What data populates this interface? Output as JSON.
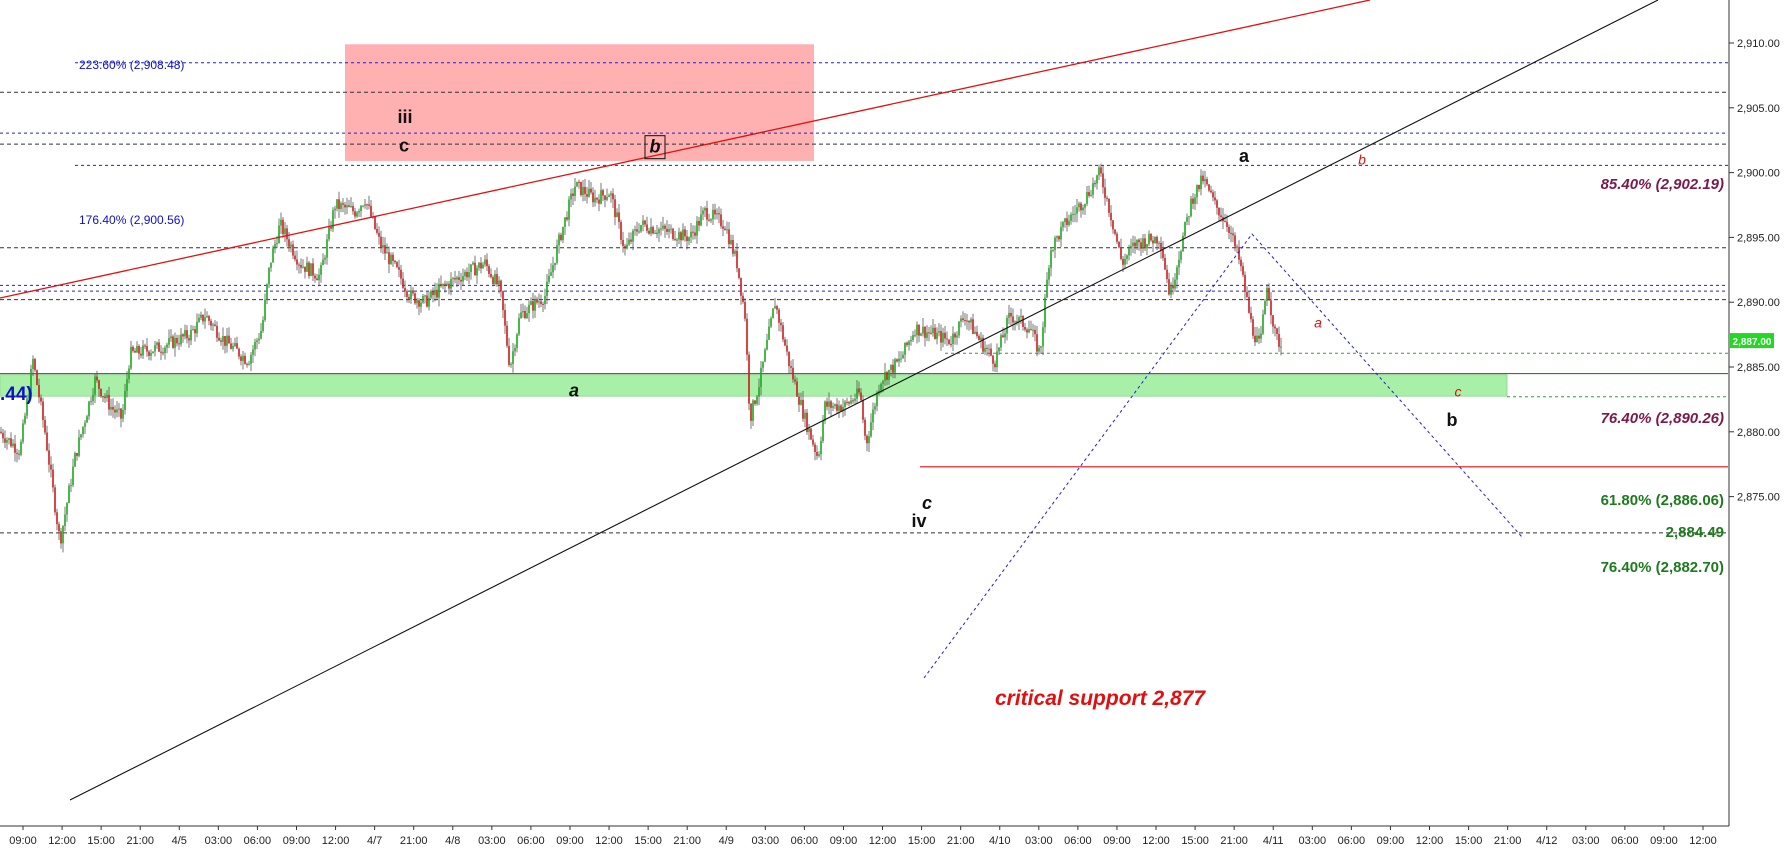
{
  "chart_data": {
    "type": "candlestick",
    "title": "",
    "xlabel": "",
    "ylabel": "",
    "ylim": [
      2870.3,
      2913.2
    ],
    "y_ticks": [
      "2,875.00",
      "2,880.00",
      "2,885.00",
      "2,890.00",
      "2,895.00",
      "2,900.00",
      "2,905.00",
      "2,910.00"
    ],
    "x_ticks": [
      "09:00",
      "12:00",
      "15:00",
      "21:00",
      "4/5",
      "03:00",
      "06:00",
      "09:00",
      "12:00",
      "4/7",
      "21:00",
      "4/8",
      "03:00",
      "06:00",
      "09:00",
      "12:00",
      "15:00",
      "21:00",
      "4/9",
      "03:00",
      "06:00",
      "09:00",
      "12:00",
      "15:00",
      "21:00",
      "4/10",
      "03:00",
      "06:00",
      "09:00",
      "12:00",
      "15:00",
      "21:00",
      "4/11",
      "03:00",
      "06:00",
      "09:00",
      "12:00",
      "15:00",
      "21:00",
      "4/12",
      "03:00",
      "06:00",
      "09:00",
      "12:00"
    ],
    "last_price": "2,887.00",
    "price_path": [
      [
        0,
        2880
      ],
      [
        20,
        2878.5
      ],
      [
        33,
        2885.5
      ],
      [
        45,
        2880
      ],
      [
        52,
        2876
      ],
      [
        60,
        2871.5
      ],
      [
        75,
        2878
      ],
      [
        95,
        2884
      ],
      [
        110,
        2882
      ],
      [
        122,
        2881
      ],
      [
        130,
        2886
      ],
      [
        160,
        2886.5
      ],
      [
        190,
        2887.5
      ],
      [
        205,
        2889
      ],
      [
        225,
        2887
      ],
      [
        248,
        2885.5
      ],
      [
        262,
        2888
      ],
      [
        270,
        2893
      ],
      [
        280,
        2896
      ],
      [
        300,
        2893
      ],
      [
        320,
        2892
      ],
      [
        335,
        2897.5
      ],
      [
        355,
        2897
      ],
      [
        365,
        2898
      ],
      [
        380,
        2894.5
      ],
      [
        400,
        2892
      ],
      [
        410,
        2890.5
      ],
      [
        425,
        2890
      ],
      [
        440,
        2891
      ],
      [
        460,
        2892
      ],
      [
        485,
        2893
      ],
      [
        500,
        2891
      ],
      [
        510,
        2885
      ],
      [
        520,
        2889
      ],
      [
        545,
        2890.5
      ],
      [
        560,
        2895
      ],
      [
        575,
        2899
      ],
      [
        595,
        2898
      ],
      [
        610,
        2898.5
      ],
      [
        625,
        2894
      ],
      [
        640,
        2896
      ],
      [
        665,
        2895.5
      ],
      [
        690,
        2895
      ],
      [
        705,
        2897
      ],
      [
        725,
        2896
      ],
      [
        737,
        2893
      ],
      [
        745,
        2889
      ],
      [
        750,
        2881
      ],
      [
        760,
        2884
      ],
      [
        775,
        2890
      ],
      [
        790,
        2885
      ],
      [
        805,
        2881
      ],
      [
        818,
        2878
      ],
      [
        825,
        2882
      ],
      [
        845,
        2882
      ],
      [
        860,
        2883
      ],
      [
        866,
        2879
      ],
      [
        880,
        2884
      ],
      [
        900,
        2885.5
      ],
      [
        915,
        2888
      ],
      [
        935,
        2887.5
      ],
      [
        950,
        2887
      ],
      [
        965,
        2889
      ],
      [
        980,
        2887
      ],
      [
        995,
        2885.5
      ],
      [
        1010,
        2889
      ],
      [
        1030,
        2888
      ],
      [
        1040,
        2886
      ],
      [
        1050,
        2894
      ],
      [
        1065,
        2896
      ],
      [
        1085,
        2898
      ],
      [
        1100,
        2900
      ],
      [
        1110,
        2897
      ],
      [
        1122,
        2893
      ],
      [
        1135,
        2894.5
      ],
      [
        1160,
        2895
      ],
      [
        1170,
        2890.5
      ],
      [
        1180,
        2894
      ],
      [
        1192,
        2898
      ],
      [
        1203,
        2899.5
      ],
      [
        1215,
        2897.5
      ],
      [
        1228,
        2896
      ],
      [
        1240,
        2893
      ],
      [
        1252,
        2888
      ],
      [
        1260,
        2886.5
      ],
      [
        1267,
        2891.5
      ],
      [
        1275,
        2887.5
      ],
      [
        1282,
        2886.5
      ]
    ],
    "fib_levels_blue": [
      {
        "label": "223.60% (2,908.48)",
        "value": 2908.48
      },
      {
        "label": "176.40% (2,900.56)",
        "value": 2900.56
      }
    ],
    "extra_dashed_blue": [
      2903.05,
      2891.3,
      2890.85
    ],
    "dashed_black": [
      2906.2,
      2902.2,
      2894.2,
      2890.2,
      2872.2
    ],
    "fib_levels_right": [
      {
        "label": "85.40% (2,902.19)",
        "value": 2902.19,
        "color": "#7a1a4a"
      },
      {
        "label": "76.40% (2,890.26)",
        "value": 2890.26,
        "color": "#7a1a4a"
      },
      {
        "label": "61.80% (2,886.06)",
        "value": 2886.06,
        "color": "#1d7a1d"
      },
      {
        "label": "2,884.49",
        "value": 2884.49,
        "color": "#1d7a1d"
      },
      {
        "label": "76.40% (2,882.70)",
        "value": 2882.7,
        "color": "#1d7a1d"
      }
    ],
    "support_zone": {
      "from": 2882.75,
      "to": 2884.4,
      "color": "#a8f0a8"
    },
    "resistance_box": {
      "from": 2900.9,
      "to": 2909.9,
      "color": "#ffb0b0"
    },
    "critical_support": {
      "label": "critical support 2,877",
      "value": 2877.3
    },
    "left_partial_label": ".44)",
    "wave_labels": [
      {
        "text": "iii",
        "style": "black",
        "price": 2904.3
      },
      {
        "text": "c",
        "style": "black",
        "price": 2902.1
      },
      {
        "text": "b",
        "style": "black-italic-boxed",
        "price": 2902.0
      },
      {
        "text": "a",
        "style": "black-italic",
        "price": 2883.2
      },
      {
        "text": "c",
        "style": "black-italic",
        "price": 2874.5
      },
      {
        "text": "iv",
        "style": "black",
        "price": 2873.1
      },
      {
        "text": "a",
        "style": "black",
        "price": 2901.3
      },
      {
        "text": "b",
        "style": "red",
        "price": 2901.1
      },
      {
        "text": "a",
        "style": "red",
        "price": 2888.5
      },
      {
        "text": "c",
        "style": "red",
        "price": 2883.2
      },
      {
        "text": "b",
        "style": "black",
        "price": 2880.9
      }
    ]
  }
}
